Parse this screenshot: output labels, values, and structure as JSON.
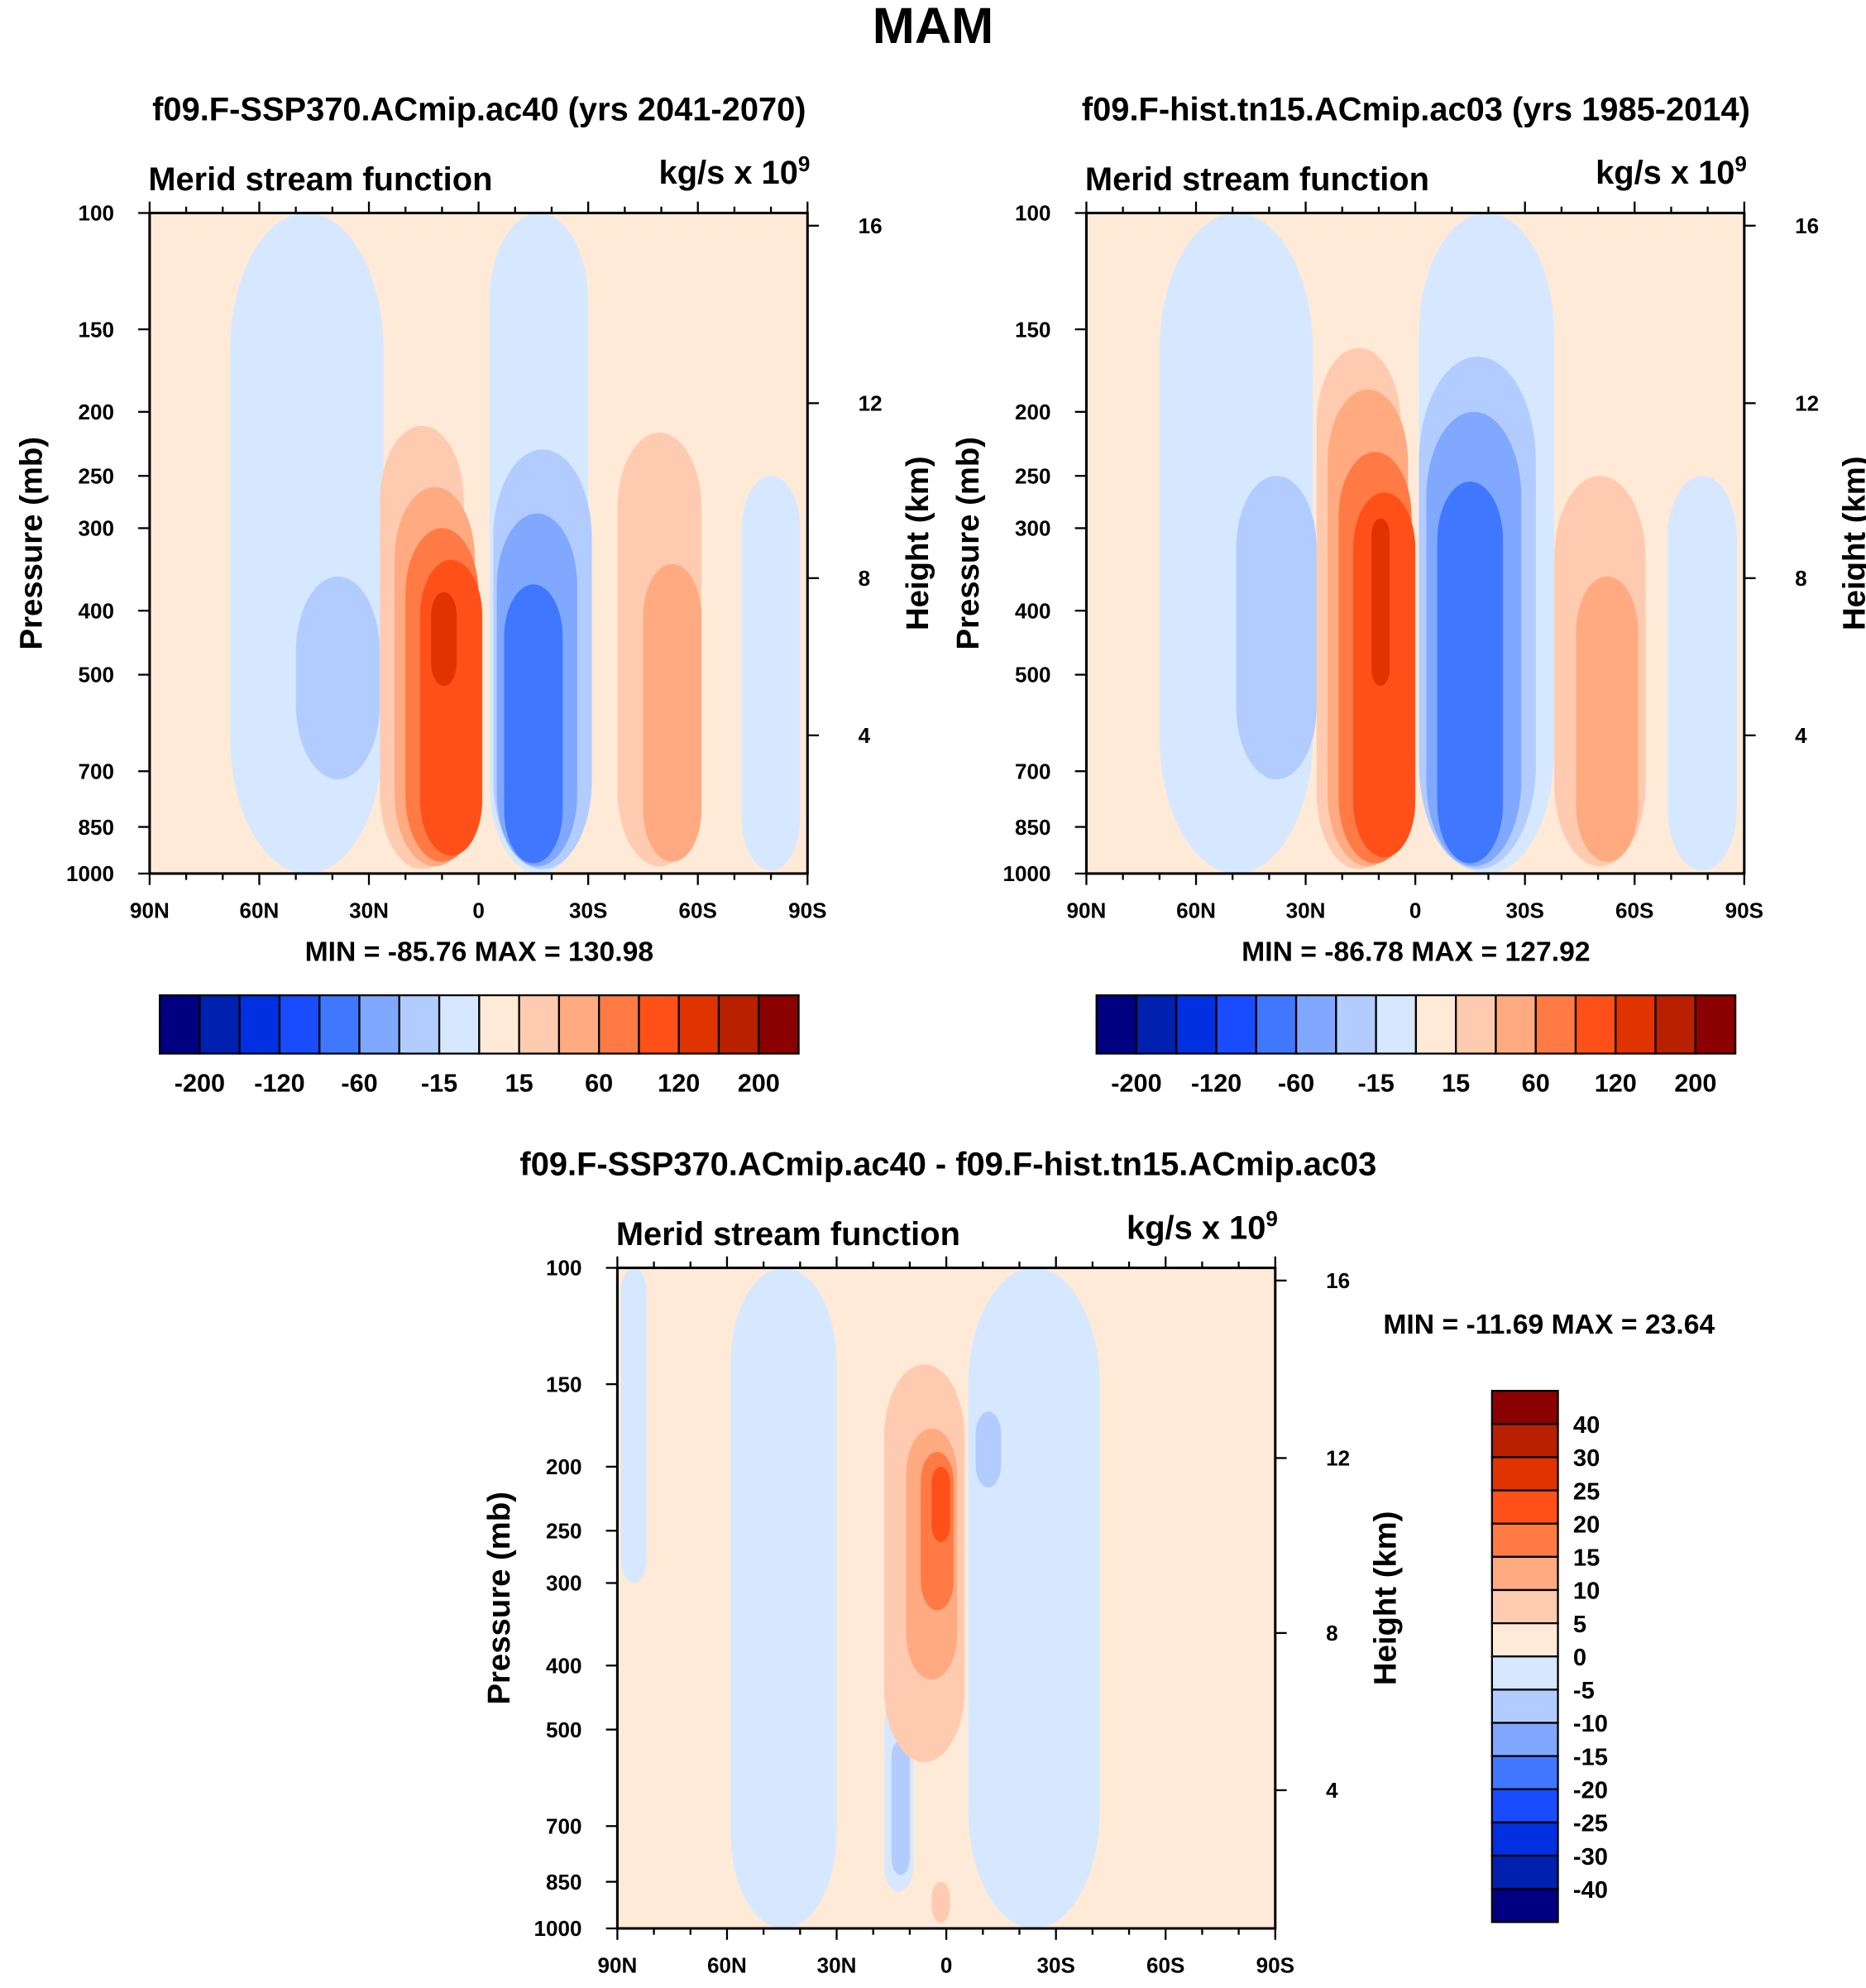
{
  "title": "MAM",
  "colors": {
    "main": [
      "#000080",
      "#0020b0",
      "#0030e0",
      "#1a4cff",
      "#3f78ff",
      "#80a8ff",
      "#b3ccff",
      "#d6e8ff",
      "#ffead8",
      "#ffcbb0",
      "#ffaa80",
      "#ff7a44",
      "#ff5019",
      "#e03300",
      "#b82000",
      "#8b0000"
    ]
  },
  "axis": {
    "ylabel": "Pressure (mb)",
    "ylabel_right": "Height (km)",
    "pressure_ticks": [
      100,
      150,
      200,
      250,
      300,
      400,
      500,
      700,
      850,
      1000
    ],
    "height_ticks": [
      16,
      12,
      8,
      4
    ],
    "lat_ticks": [
      90,
      60,
      30,
      0,
      -30,
      -60,
      -90
    ],
    "lat_labels": [
      "90N",
      "60N",
      "30N",
      "0",
      "30S",
      "60S",
      "90S"
    ]
  },
  "chart_data": [
    {
      "type": "heatmap",
      "title": "f09.F-SSP370.ACmip.ac40 (yrs 2041-2070)",
      "left_label": "Merid stream function",
      "units": "kg/s x 10",
      "units_exp": "9",
      "stats": "MIN = -85.76  MAX = 130.98",
      "colorbar_labels": [
        "-200",
        "-120",
        "-60",
        "-15",
        "15",
        "60",
        "120",
        "200"
      ],
      "xlim": [
        90,
        -90
      ],
      "ylim": [
        1000,
        100
      ],
      "features": [
        {
          "lat": [
            68,
            26
          ],
          "p": [
            100,
            1000
          ],
          "c": 7
        },
        {
          "lat": [
            -3,
            -30
          ],
          "p": [
            100,
            1000
          ],
          "c": 7
        },
        {
          "lat": [
            -72,
            -88
          ],
          "p": [
            250,
            990
          ],
          "c": 7
        },
        {
          "lat": [
            50,
            27
          ],
          "p": [
            355,
            720
          ],
          "c": 6
        },
        {
          "lat": [
            27,
            4
          ],
          "p": [
            210,
            985
          ],
          "c": 9
        },
        {
          "lat": [
            23,
            1
          ],
          "p": [
            260,
            975
          ],
          "c": 10
        },
        {
          "lat": [
            20,
            0
          ],
          "p": [
            300,
            960
          ],
          "c": 11
        },
        {
          "lat": [
            16,
            -1
          ],
          "p": [
            335,
            940
          ],
          "c": 12
        },
        {
          "lat": [
            13,
            6
          ],
          "p": [
            375,
            520
          ],
          "c": 13
        },
        {
          "lat": [
            -4,
            -31
          ],
          "p": [
            228,
            985
          ],
          "c": 6
        },
        {
          "lat": [
            -5,
            -27
          ],
          "p": [
            285,
            975
          ],
          "c": 5
        },
        {
          "lat": [
            -7,
            -23
          ],
          "p": [
            365,
            965
          ],
          "c": 4
        },
        {
          "lat": [
            -38,
            -61
          ],
          "p": [
            215,
            975
          ],
          "c": 9
        },
        {
          "lat": [
            -45,
            -61
          ],
          "p": [
            340,
            960
          ],
          "c": 10
        }
      ]
    },
    {
      "type": "heatmap",
      "title": "f09.F-hist.tn15.ACmip.ac03 (yrs 1985-2014)",
      "left_label": "Merid stream function",
      "units": "kg/s x 10",
      "units_exp": "9",
      "stats": "MIN = -86.78  MAX = 127.92",
      "colorbar_labels": [
        "-200",
        "-120",
        "-60",
        "-15",
        "15",
        "60",
        "120",
        "200"
      ],
      "xlim": [
        90,
        -90
      ],
      "ylim": [
        1000,
        100
      ],
      "features": [
        {
          "lat": [
            70,
            28
          ],
          "p": [
            100,
            1000
          ],
          "c": 7
        },
        {
          "lat": [
            -1,
            -38
          ],
          "p": [
            100,
            1000
          ],
          "c": 7
        },
        {
          "lat": [
            -69,
            -88
          ],
          "p": [
            250,
            990
          ],
          "c": 7
        },
        {
          "lat": [
            49,
            27
          ],
          "p": [
            250,
            720
          ],
          "c": 6
        },
        {
          "lat": [
            27,
            4
          ],
          "p": [
            160,
            985
          ],
          "c": 9
        },
        {
          "lat": [
            24,
            2
          ],
          "p": [
            185,
            975
          ],
          "c": 10
        },
        {
          "lat": [
            21,
            1
          ],
          "p": [
            230,
            965
          ],
          "c": 11
        },
        {
          "lat": [
            17,
            0
          ],
          "p": [
            265,
            945
          ],
          "c": 12
        },
        {
          "lat": [
            12,
            7
          ],
          "p": [
            290,
            520
          ],
          "c": 13
        },
        {
          "lat": [
            -1,
            -33
          ],
          "p": [
            165,
            985
          ],
          "c": 6
        },
        {
          "lat": [
            -3,
            -29
          ],
          "p": [
            200,
            975
          ],
          "c": 5
        },
        {
          "lat": [
            -6,
            -24
          ],
          "p": [
            255,
            965
          ],
          "c": 4
        },
        {
          "lat": [
            -38,
            -63
          ],
          "p": [
            250,
            975
          ],
          "c": 9
        },
        {
          "lat": [
            -44,
            -61
          ],
          "p": [
            355,
            960
          ],
          "c": 10
        }
      ]
    },
    {
      "type": "heatmap",
      "title": "f09.F-SSP370.ACmip.ac40 - f09.F-hist.tn15.ACmip.ac03",
      "left_label": "Merid stream function",
      "units": "kg/s x 10",
      "units_exp": "9",
      "stats": "MIN = -11.69  MAX =  23.64",
      "colorbar_labels": [
        "40",
        "30",
        "25",
        "20",
        "15",
        "10",
        "5",
        "0",
        "-5",
        "-10",
        "-15",
        "-20",
        "-25",
        "-30",
        "-40"
      ],
      "xlim": [
        90,
        -90
      ],
      "ylim": [
        1000,
        100
      ],
      "features": [
        {
          "lat": [
            59,
            30
          ],
          "p": [
            100,
            1000
          ],
          "c": 7
        },
        {
          "lat": [
            -6,
            -42
          ],
          "p": [
            100,
            1000
          ],
          "c": 7
        },
        {
          "lat": [
            89,
            82
          ],
          "p": [
            100,
            300
          ],
          "c": 7
        },
        {
          "lat": [
            -20,
            -12
          ],
          "p": [
            300,
            760
          ],
          "c": 8
        },
        {
          "lat": [
            17,
            9
          ],
          "p": [
            450,
            880
          ],
          "c": 7
        },
        {
          "lat": [
            15,
            10
          ],
          "p": [
            520,
            830
          ],
          "c": 6
        },
        {
          "lat": [
            17,
            -5
          ],
          "p": [
            140,
            560
          ],
          "c": 9
        },
        {
          "lat": [
            11,
            -3
          ],
          "p": [
            175,
            420
          ],
          "c": 10
        },
        {
          "lat": [
            7,
            -2
          ],
          "p": [
            190,
            330
          ],
          "c": 11
        },
        {
          "lat": [
            4,
            -1
          ],
          "p": [
            200,
            260
          ],
          "c": 12
        },
        {
          "lat": [
            -8,
            -15
          ],
          "p": [
            165,
            215
          ],
          "c": 6
        },
        {
          "lat": [
            4,
            -1
          ],
          "p": [
            850,
            980
          ],
          "c": 9
        }
      ]
    }
  ]
}
